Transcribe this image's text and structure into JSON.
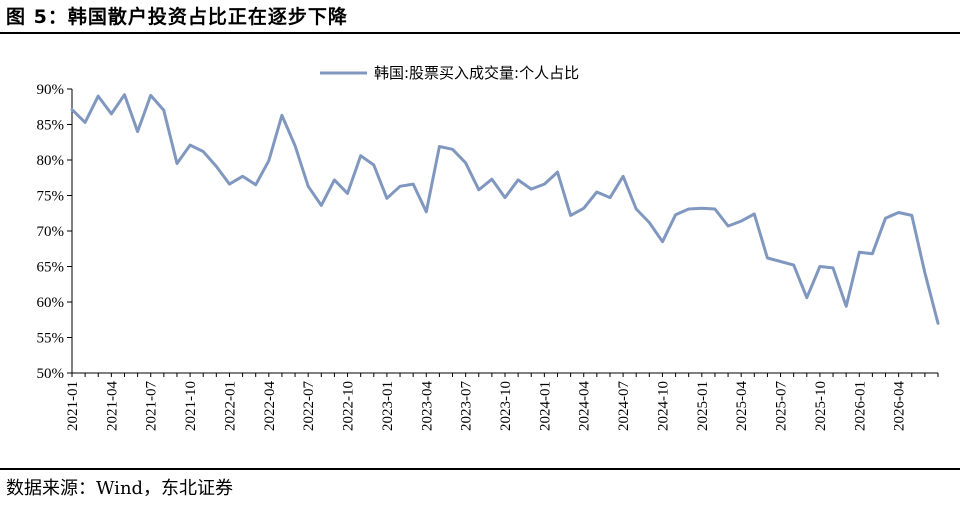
{
  "figure": {
    "title": "图 5：韩国散户投资占比正在逐步下降",
    "source": "数据来源：Wind，东北证券"
  },
  "chart_data": {
    "type": "line",
    "title": "",
    "xlabel": "",
    "ylabel": "",
    "ylim": [
      50,
      90
    ],
    "y_ticks": [
      50,
      55,
      60,
      65,
      70,
      75,
      80,
      85,
      90
    ],
    "y_tick_format": "percent",
    "x_tick_labels": [
      "2021-01",
      "2021-04",
      "2021-07",
      "2021-10",
      "2022-01",
      "2022-04",
      "2022-07",
      "2022-10",
      "2023-01",
      "2023-04",
      "2023-07",
      "2023-10",
      "2024-01",
      "2024-04",
      "2024-07",
      "2024-10",
      "2025-01",
      "2025-04",
      "2025-07",
      "2025-10",
      "2026-01",
      "2026-04"
    ],
    "x_tick_every": 3,
    "legend_position": "top-center",
    "grid": false,
    "series": [
      {
        "name": "韩国:股票买入成交量:个人占比",
        "color": "#8097bf",
        "start": "2021-01",
        "values": [
          87.1,
          85.3,
          89.0,
          86.5,
          89.2,
          84.0,
          89.1,
          87.0,
          79.5,
          82.1,
          81.2,
          79.1,
          76.6,
          77.7,
          76.5,
          79.9,
          86.3,
          82.0,
          76.3,
          73.6,
          77.2,
          75.3,
          80.6,
          79.3,
          74.6,
          76.3,
          76.6,
          72.7,
          81.9,
          81.5,
          79.6,
          75.8,
          77.3,
          74.7,
          77.2,
          75.9,
          76.6,
          78.3,
          72.2,
          73.2,
          75.5,
          74.7,
          77.7,
          73.1,
          71.2,
          68.5,
          72.3,
          73.1,
          73.2,
          73.1,
          70.7,
          71.4,
          72.4,
          66.2,
          65.7,
          65.2,
          60.6,
          65.0,
          64.8,
          59.4,
          67.0,
          66.8,
          71.8,
          72.6,
          72.2,
          64.1,
          57.0
        ]
      }
    ]
  }
}
